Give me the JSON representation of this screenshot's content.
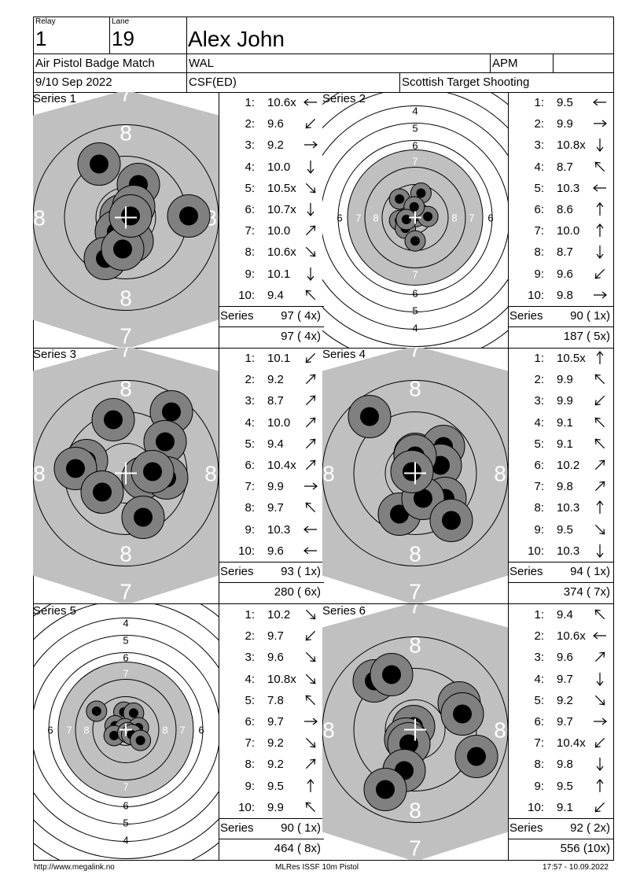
{
  "header": {
    "relay_label": "Relay",
    "relay_value": "1",
    "lane_label": "Lane",
    "lane_value": "19",
    "shooter_name": "Alex John",
    "event": "Air Pistol Badge Match",
    "club": "WAL",
    "class": "APM",
    "class_extra": "",
    "date": "9/10 Sep 2022",
    "category": "CSF(ED)",
    "organizer": "Scottish Target Shooting"
  },
  "series": [
    {
      "label": "Series 1",
      "target_type": "outer-zoom",
      "shots": [
        {
          "n": "1:",
          "v": "10.6x",
          "dir": "W"
        },
        {
          "n": "2:",
          "v": "9.6",
          "dir": "SW"
        },
        {
          "n": "3:",
          "v": "9.2",
          "dir": "E"
        },
        {
          "n": "4:",
          "v": "10.0",
          "dir": "S"
        },
        {
          "n": "5:",
          "v": "10.5x",
          "dir": "SE"
        },
        {
          "n": "6:",
          "v": "10.7x",
          "dir": "S"
        },
        {
          "n": "7:",
          "v": "10.0",
          "dir": "NE"
        },
        {
          "n": "8:",
          "v": "10.6x",
          "dir": "SE"
        },
        {
          "n": "9:",
          "v": "10.1",
          "dir": "S"
        },
        {
          "n": "10:",
          "v": "9.4",
          "dir": "NW"
        }
      ],
      "series_label": "Series",
      "series_total": "97 ( 4x)",
      "running_total": "97 ( 4x)",
      "impacts": [
        [
          -34,
          -68
        ],
        [
          16,
          -42
        ],
        [
          -6,
          -2
        ],
        [
          80,
          -2
        ],
        [
          10,
          -14
        ],
        [
          -12,
          18
        ],
        [
          8,
          30
        ],
        [
          -26,
          52
        ],
        [
          -4,
          40
        ],
        [
          6,
          -2
        ]
      ]
    },
    {
      "label": "Series 2",
      "target_type": "full",
      "shots": [
        {
          "n": "1:",
          "v": "9.5",
          "dir": "W"
        },
        {
          "n": "2:",
          "v": "9.9",
          "dir": "E"
        },
        {
          "n": "3:",
          "v": "10.8x",
          "dir": "S"
        },
        {
          "n": "4:",
          "v": "8.7",
          "dir": "NW"
        },
        {
          "n": "5:",
          "v": "10.3",
          "dir": "W"
        },
        {
          "n": "6:",
          "v": "8.6",
          "dir": "N"
        },
        {
          "n": "7:",
          "v": "10.0",
          "dir": "N"
        },
        {
          "n": "8:",
          "v": "8.7",
          "dir": "S"
        },
        {
          "n": "9:",
          "v": "9.6",
          "dir": "SW"
        },
        {
          "n": "10:",
          "v": "9.8",
          "dir": "E"
        }
      ],
      "series_label": "Series",
      "series_total": "90 ( 1x)",
      "running_total": "187 ( 5x)",
      "impacts": [
        [
          -32,
          -38
        ],
        [
          12,
          -50
        ],
        [
          -32,
          6
        ],
        [
          -20,
          22
        ],
        [
          -12,
          -2
        ],
        [
          2,
          -2
        ],
        [
          26,
          -2
        ],
        [
          -2,
          -22
        ],
        [
          -18,
          4
        ],
        [
          0,
          48
        ]
      ]
    },
    {
      "label": "Series 3",
      "target_type": "outer-zoom",
      "shots": [
        {
          "n": "1:",
          "v": "10.1",
          "dir": "SW"
        },
        {
          "n": "2:",
          "v": "9.2",
          "dir": "NE"
        },
        {
          "n": "3:",
          "v": "8.7",
          "dir": "NE"
        },
        {
          "n": "4:",
          "v": "10.0",
          "dir": "NE"
        },
        {
          "n": "5:",
          "v": "9.4",
          "dir": "NE"
        },
        {
          "n": "6:",
          "v": "10.4x",
          "dir": "NE"
        },
        {
          "n": "7:",
          "v": "9.9",
          "dir": "E"
        },
        {
          "n": "8:",
          "v": "9.7",
          "dir": "NW"
        },
        {
          "n": "9:",
          "v": "10.3",
          "dir": "W"
        },
        {
          "n": "10:",
          "v": "9.6",
          "dir": "W"
        }
      ],
      "series_label": "Series",
      "series_total": "93 ( 1x)",
      "running_total": "280 ( 6x)",
      "impacts": [
        [
          -16,
          -68
        ],
        [
          58,
          -78
        ],
        [
          50,
          -40
        ],
        [
          -50,
          -16
        ],
        [
          -64,
          -6
        ],
        [
          -30,
          24
        ],
        [
          22,
          6
        ],
        [
          52,
          6
        ],
        [
          22,
          56
        ],
        [
          34,
          -2
        ]
      ]
    },
    {
      "label": "Series 4",
      "target_type": "outer-zoom",
      "shots": [
        {
          "n": "1:",
          "v": "10.5x",
          "dir": "N"
        },
        {
          "n": "2:",
          "v": "9.9",
          "dir": "NW"
        },
        {
          "n": "3:",
          "v": "9.9",
          "dir": "SW"
        },
        {
          "n": "4:",
          "v": "9.1",
          "dir": "NW"
        },
        {
          "n": "5:",
          "v": "9.1",
          "dir": "NW"
        },
        {
          "n": "6:",
          "v": "10.2",
          "dir": "NE"
        },
        {
          "n": "7:",
          "v": "9.8",
          "dir": "NE"
        },
        {
          "n": "8:",
          "v": "10.3",
          "dir": "N"
        },
        {
          "n": "9:",
          "v": "9.5",
          "dir": "SE"
        },
        {
          "n": "10:",
          "v": "10.3",
          "dir": "S"
        }
      ],
      "series_label": "Series",
      "series_total": "94 ( 1x)",
      "running_total": "374 ( 7x)",
      "impacts": [
        [
          -58,
          -72
        ],
        [
          0,
          -24
        ],
        [
          36,
          -34
        ],
        [
          32,
          -10
        ],
        [
          -20,
          52
        ],
        [
          38,
          32
        ],
        [
          10,
          32
        ],
        [
          46,
          60
        ],
        [
          0,
          -22
        ],
        [
          -4,
          -2
        ]
      ]
    },
    {
      "label": "Series 5",
      "target_type": "full",
      "shots": [
        {
          "n": "1:",
          "v": "10.2",
          "dir": "SE"
        },
        {
          "n": "2:",
          "v": "9.7",
          "dir": "SW"
        },
        {
          "n": "3:",
          "v": "9.6",
          "dir": "SE"
        },
        {
          "n": "4:",
          "v": "10.8x",
          "dir": "SE"
        },
        {
          "n": "5:",
          "v": "7.8",
          "dir": "NW"
        },
        {
          "n": "6:",
          "v": "9.7",
          "dir": "E"
        },
        {
          "n": "7:",
          "v": "9.2",
          "dir": "SE"
        },
        {
          "n": "8:",
          "v": "9.2",
          "dir": "NE"
        },
        {
          "n": "9:",
          "v": "9.5",
          "dir": "N"
        },
        {
          "n": "10:",
          "v": "9.9",
          "dir": "NW"
        }
      ],
      "series_label": "Series",
      "series_total": "90 ( 1x)",
      "running_total": "464 ( 8x)",
      "impacts": [
        [
          -60,
          -38
        ],
        [
          -4,
          -36
        ],
        [
          16,
          -34
        ],
        [
          -22,
          -8
        ],
        [
          -2,
          -2
        ],
        [
          26,
          -4
        ],
        [
          -24,
          12
        ],
        [
          4,
          6
        ],
        [
          12,
          10
        ],
        [
          30,
          22
        ]
      ]
    },
    {
      "label": "Series 6",
      "target_type": "outer-zoom",
      "shots": [
        {
          "n": "1:",
          "v": "9.4",
          "dir": "NW"
        },
        {
          "n": "2:",
          "v": "10.6x",
          "dir": "W"
        },
        {
          "n": "3:",
          "v": "9.6",
          "dir": "NE"
        },
        {
          "n": "4:",
          "v": "9.7",
          "dir": "S"
        },
        {
          "n": "5:",
          "v": "9.2",
          "dir": "SE"
        },
        {
          "n": "6:",
          "v": "9.7",
          "dir": "E"
        },
        {
          "n": "7:",
          "v": "10.4x",
          "dir": "SW"
        },
        {
          "n": "8:",
          "v": "9.8",
          "dir": "S"
        },
        {
          "n": "9:",
          "v": "9.5",
          "dir": "N"
        },
        {
          "n": "10:",
          "v": "9.1",
          "dir": "SW"
        }
      ],
      "series_label": "Series",
      "series_total": "92 ( 2x)",
      "running_total": "556 (10x)",
      "impacts": [
        [
          -52,
          -62
        ],
        [
          -30,
          -70
        ],
        [
          56,
          -34
        ],
        [
          60,
          -20
        ],
        [
          -2,
          -4
        ],
        [
          -12,
          12
        ],
        [
          -8,
          18
        ],
        [
          78,
          34
        ],
        [
          -14,
          52
        ],
        [
          -38,
          76
        ]
      ]
    }
  ],
  "footer": {
    "url": "http://www.megalink.no",
    "app": "MLRes ISSF 10m Pistol",
    "timestamp": "17:57 - 10.09.2022"
  },
  "colors": {
    "target_grey": "#c0c0c0",
    "shot_ring": "#808080",
    "shot_core": "#000000",
    "lines": "#000000"
  }
}
